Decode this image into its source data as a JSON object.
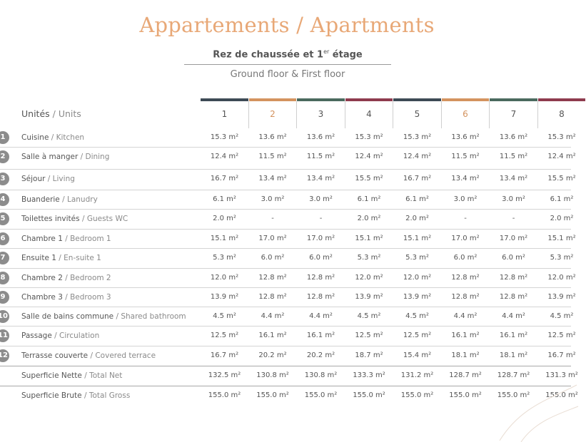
{
  "title": "Appartements / Apartments",
  "subtitle_fr": "Rez de chaussée et 1",
  "subtitle_sup": "er",
  "subtitle_fr_end": " étage",
  "subtitle_en": "Ground floor & First floor",
  "units_header": {
    "fr": "Unités",
    "en": " / Units"
  },
  "columns": [
    {
      "label": "1",
      "color": "#3d4a55"
    },
    {
      "label": "2",
      "color": "#d4935f"
    },
    {
      "label": "3",
      "color": "#4a6a5e"
    },
    {
      "label": "4",
      "color": "#8e3b4e"
    },
    {
      "label": "5",
      "color": "#3d4a55"
    },
    {
      "label": "6",
      "color": "#d4935f"
    },
    {
      "label": "7",
      "color": "#4a6a5e"
    },
    {
      "label": "8",
      "color": "#8e3b4e"
    }
  ],
  "rows": [
    {
      "num": "1",
      "fr": "Cuisine",
      "en": "Kitchen",
      "values": [
        "15.3 m²",
        "13.6 m²",
        "13.6 m²",
        "15.3 m²",
        "15.3 m²",
        "13.6 m²",
        "13.6 m²",
        "15.3 m²"
      ]
    },
    {
      "num": "2",
      "fr": "Salle à manger",
      "en": "Dining",
      "values": [
        "12.4 m²",
        "11.5 m²",
        "11.5 m²",
        "12.4 m²",
        "12.4 m²",
        "11.5 m²",
        "11.5 m²",
        "12.4 m²"
      ]
    },
    {
      "num": "3",
      "fr": "Séjour",
      "en": "Living",
      "values": [
        "16.7 m²",
        "13.4 m²",
        "13.4 m²",
        "15.5 m²",
        "16.7 m²",
        "13.4 m²",
        "13.4 m²",
        "15.5 m²"
      ]
    },
    {
      "num": "4",
      "fr": "Buanderie",
      "en": "Lanudry",
      "values": [
        "6.1 m²",
        "3.0 m²",
        "3.0 m²",
        "6.1 m²",
        "6.1 m²",
        "3.0 m²",
        "3.0 m²",
        "6.1 m²"
      ]
    },
    {
      "num": "5",
      "fr": "Toilettes invités",
      "en": "Guests WC",
      "values": [
        "2.0 m²",
        "-",
        "-",
        "2.0 m²",
        "2.0 m²",
        "-",
        "-",
        "2.0 m²"
      ]
    },
    {
      "num": "6",
      "fr": "Chambre 1",
      "en": "Bedroom 1",
      "values": [
        "15.1 m²",
        "17.0 m²",
        "17.0 m²",
        "15.1 m²",
        "15.1 m²",
        "17.0 m²",
        "17.0 m²",
        "15.1 m²"
      ]
    },
    {
      "num": "7",
      "fr": "Ensuite 1",
      "en": "En-suite 1",
      "values": [
        "5.3 m²",
        "6.0 m²",
        "6.0 m²",
        "5.3 m²",
        "5.3 m²",
        "6.0 m²",
        "6.0 m²",
        "5.3 m²"
      ]
    },
    {
      "num": "8",
      "fr": "Chambre 2",
      "en": "Bedroom 2",
      "values": [
        "12.0 m²",
        "12.8 m²",
        "12.8 m²",
        "12.0 m²",
        "12.0 m²",
        "12.8 m²",
        "12.8 m²",
        "12.0 m²"
      ]
    },
    {
      "num": "9",
      "fr": "Chambre 3",
      "en": "Bedroom 3",
      "values": [
        "13.9 m²",
        "12.8 m²",
        "12.8 m²",
        "13.9 m²",
        "13.9 m²",
        "12.8 m²",
        "12.8 m²",
        "13.9 m²"
      ]
    },
    {
      "num": "10",
      "fr": "Salle de bains commune",
      "en": "Shared bathroom",
      "values": [
        "4.5 m²",
        "4.4 m²",
        "4.4 m²",
        "4.5 m²",
        "4.5 m²",
        "4.4 m²",
        "4.4 m²",
        "4.5 m²"
      ]
    },
    {
      "num": "11",
      "fr": "Passage",
      "en": "Circulation",
      "values": [
        "12.5 m²",
        "16.1 m²",
        "16.1 m²",
        "12.5 m²",
        "12.5 m²",
        "16.1 m²",
        "16.1 m²",
        "12.5 m²"
      ]
    },
    {
      "num": "12",
      "fr": "Terrasse couverte",
      "en": "Covered terrace",
      "values": [
        "16.7 m²",
        "20.2 m²",
        "20.2 m²",
        "18.7 m²",
        "15.4 m²",
        "18.1 m²",
        "18.1 m²",
        "16.7 m²"
      ]
    }
  ],
  "totals": [
    {
      "fr": "Superficie Nette",
      "en": "Total Net",
      "values": [
        "132.5 m²",
        "130.8 m²",
        "130.8 m²",
        "133.3 m²",
        "131.2 m²",
        "128.7 m²",
        "128.7 m²",
        "131.3 m²"
      ]
    },
    {
      "fr": "Superficie Brute",
      "en": "Total Gross",
      "values": [
        "155.0 m²",
        "155.0 m²",
        "155.0 m²",
        "155.0 m²",
        "155.0 m²",
        "155.0 m²",
        "155.0 m²",
        "155.0 m²"
      ]
    }
  ]
}
